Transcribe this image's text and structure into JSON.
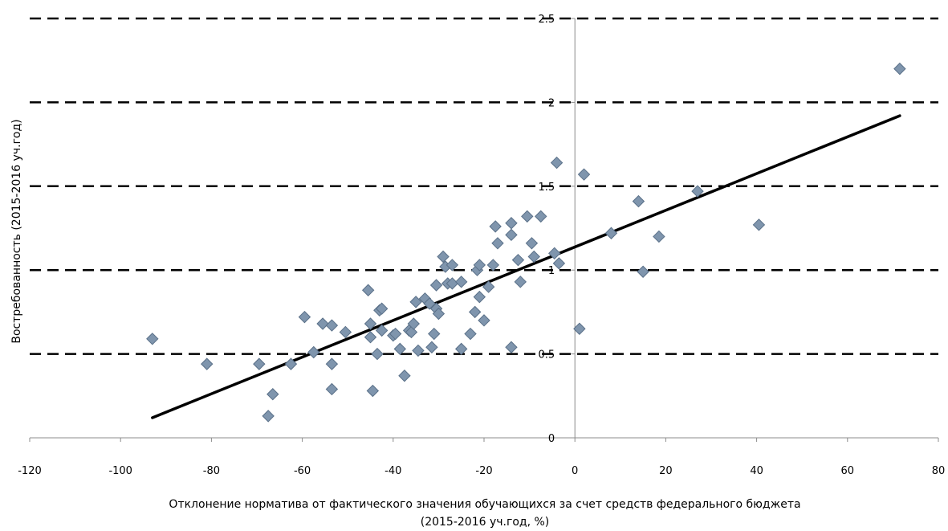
{
  "chart_data": {
    "type": "scatter",
    "title": "",
    "xlabel": "Отклонение норматива от фактического значения обучающихся за счет средств федерального бюджета",
    "xlabel_line2": "(2015-2016 уч.год, %)",
    "ylabel": "Востребованность (2015-2016 уч.год)",
    "xlim": [
      -120,
      80
    ],
    "ylim": [
      0,
      2.5
    ],
    "xticks": [
      -120,
      -100,
      -80,
      -60,
      -40,
      -20,
      0,
      20,
      40,
      60,
      80
    ],
    "yticks": [
      0,
      0.5,
      1,
      1.5,
      2,
      2.5
    ],
    "xtick_labels": [
      "-120",
      "-100",
      "-80",
      "-60",
      "-40",
      "-20",
      "0",
      "20",
      "40",
      "60",
      "80"
    ],
    "ytick_labels": [
      "0",
      "0.5",
      "1",
      "1.5",
      "2",
      "2.5"
    ],
    "grid": "horizontal dashed",
    "legend": "none",
    "marker_color": "#7F95AD",
    "marker_edge": "#5A7088",
    "trendline_color": "#000000",
    "trendline": {
      "x": [
        -93,
        71.5
      ],
      "y": [
        0.12,
        1.92
      ]
    },
    "series": [
      {
        "points": [
          [
            -93,
            0.59
          ],
          [
            -81,
            0.44
          ],
          [
            -69.5,
            0.44
          ],
          [
            -67.5,
            0.13
          ],
          [
            -66.5,
            0.26
          ],
          [
            -62.5,
            0.44
          ],
          [
            -59.5,
            0.72
          ],
          [
            -57.5,
            0.51
          ],
          [
            -55.5,
            0.68
          ],
          [
            -53.5,
            0.67
          ],
          [
            -53.5,
            0.44
          ],
          [
            -53.5,
            0.29
          ],
          [
            -50.5,
            0.63
          ],
          [
            -45.5,
            0.88
          ],
          [
            -45,
            0.68
          ],
          [
            -45,
            0.6
          ],
          [
            -44.5,
            0.28
          ],
          [
            -43.5,
            0.5
          ],
          [
            -43,
            0.76
          ],
          [
            -42.5,
            0.77
          ],
          [
            -42.5,
            0.64
          ],
          [
            -40,
            0.61
          ],
          [
            -39.5,
            0.62
          ],
          [
            -38.5,
            0.53
          ],
          [
            -37.5,
            0.37
          ],
          [
            -36.5,
            0.64
          ],
          [
            -36,
            0.63
          ],
          [
            -35.5,
            0.68
          ],
          [
            -35,
            0.81
          ],
          [
            -34.5,
            0.52
          ],
          [
            -33,
            0.83
          ],
          [
            -32,
            0.8
          ],
          [
            -31.5,
            0.54
          ],
          [
            -31,
            0.62
          ],
          [
            -30.5,
            0.91
          ],
          [
            -30.5,
            0.77
          ],
          [
            -30,
            0.74
          ],
          [
            -29,
            1.08
          ],
          [
            -28.5,
            1.02
          ],
          [
            -28,
            0.92
          ],
          [
            -27,
            1.03
          ],
          [
            -27,
            0.92
          ],
          [
            -25,
            0.93
          ],
          [
            -25,
            0.53
          ],
          [
            -23,
            0.62
          ],
          [
            -22,
            0.75
          ],
          [
            -21.5,
            1.0
          ],
          [
            -21,
            1.03
          ],
          [
            -21,
            0.84
          ],
          [
            -20,
            0.7
          ],
          [
            -19,
            0.9
          ],
          [
            -18,
            1.03
          ],
          [
            -17.5,
            1.26
          ],
          [
            -17,
            1.16
          ],
          [
            -14,
            1.28
          ],
          [
            -14,
            1.21
          ],
          [
            -14,
            0.54
          ],
          [
            -12.5,
            1.06
          ],
          [
            -12,
            0.93
          ],
          [
            -10.5,
            1.32
          ],
          [
            -9.5,
            1.16
          ],
          [
            -9,
            1.08
          ],
          [
            -7.5,
            1.32
          ],
          [
            -4.5,
            1.1
          ],
          [
            -4,
            1.64
          ],
          [
            -3.5,
            1.04
          ],
          [
            1,
            0.65
          ],
          [
            2,
            1.57
          ],
          [
            8,
            1.22
          ],
          [
            14,
            1.41
          ],
          [
            15,
            0.99
          ],
          [
            18.5,
            1.2
          ],
          [
            27,
            1.47
          ],
          [
            40.5,
            1.27
          ],
          [
            71.5,
            2.2
          ]
        ]
      }
    ]
  }
}
